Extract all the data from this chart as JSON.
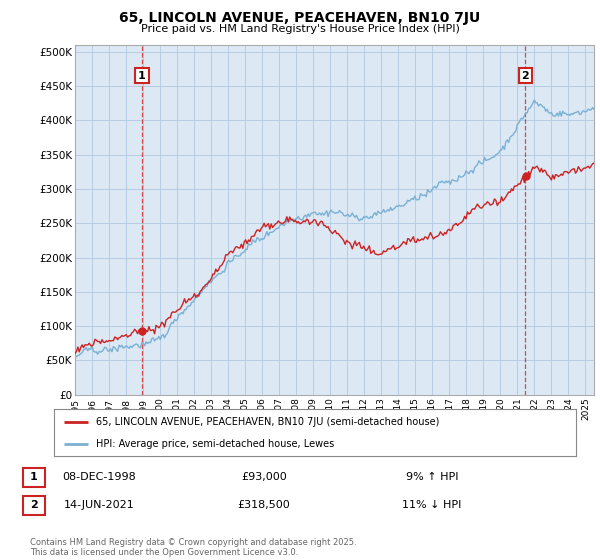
{
  "title": "65, LINCOLN AVENUE, PEACEHAVEN, BN10 7JU",
  "subtitle": "Price paid vs. HM Land Registry's House Price Index (HPI)",
  "ylabel_ticks": [
    "£0",
    "£50K",
    "£100K",
    "£150K",
    "£200K",
    "£250K",
    "£300K",
    "£350K",
    "£400K",
    "£450K",
    "£500K"
  ],
  "ytick_values": [
    0,
    50000,
    100000,
    150000,
    200000,
    250000,
    300000,
    350000,
    400000,
    450000,
    500000
  ],
  "ylim": [
    0,
    510000
  ],
  "xlim_start": 1995.0,
  "xlim_end": 2025.5,
  "hpi_color": "#7ab0d4",
  "price_color": "#cc2222",
  "marker1_date": 1998.94,
  "marker1_price": 93000,
  "marker2_date": 2021.46,
  "marker2_price": 318500,
  "legend_label1": "65, LINCOLN AVENUE, PEACEHAVEN, BN10 7JU (semi-detached house)",
  "legend_label2": "HPI: Average price, semi-detached house, Lewes",
  "annotation1_label": "1",
  "annotation2_label": "2",
  "table_row1": [
    "1",
    "08-DEC-1998",
    "£93,000",
    "9% ↑ HPI"
  ],
  "table_row2": [
    "2",
    "14-JUN-2021",
    "£318,500",
    "11% ↓ HPI"
  ],
  "footer": "Contains HM Land Registry data © Crown copyright and database right 2025.\nThis data is licensed under the Open Government Licence v3.0.",
  "background_color": "#ffffff",
  "chart_bg_color": "#dce9f5",
  "grid_color": "#b0c8e0"
}
